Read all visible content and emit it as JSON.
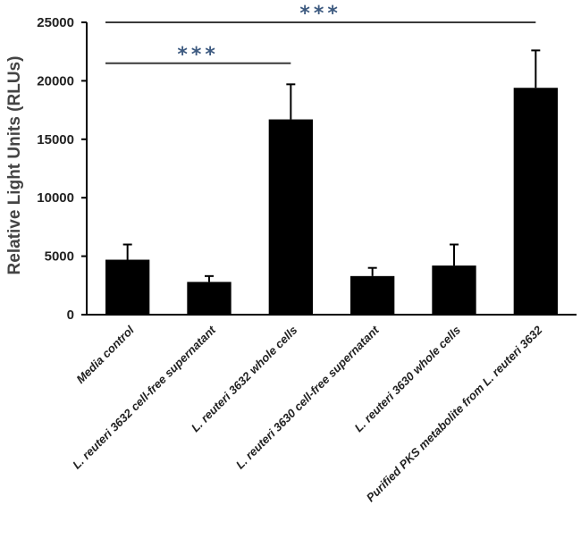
{
  "chart_data": {
    "type": "bar",
    "title": "",
    "xlabel": "",
    "ylabel": "Relative Light Units (RLUs)",
    "ylim": [
      0,
      25000
    ],
    "yticks": [
      0,
      5000,
      10000,
      15000,
      20000,
      25000
    ],
    "grid": false,
    "categories": [
      "Media control",
      "L. reuteri 3632 cell-free supernatant",
      "L. reuteri 3632 whole cells",
      "L. reuteri 3630 cell-free supernatant",
      "L. reuteri 3630 whole cells",
      "Purified PKS metabolite from L. reuteri 3632"
    ],
    "values": [
      4700,
      2800,
      16700,
      3300,
      4200,
      19400
    ],
    "errors": [
      1300,
      500,
      3000,
      700,
      1800,
      3200
    ],
    "bar_color": "#000000",
    "significance": [
      {
        "from": 0,
        "to": 2,
        "label": "***",
        "y": 21500
      },
      {
        "from": 0,
        "to": 5,
        "label": "***",
        "y": 25000
      }
    ],
    "significance_color": "#3d5a80"
  }
}
